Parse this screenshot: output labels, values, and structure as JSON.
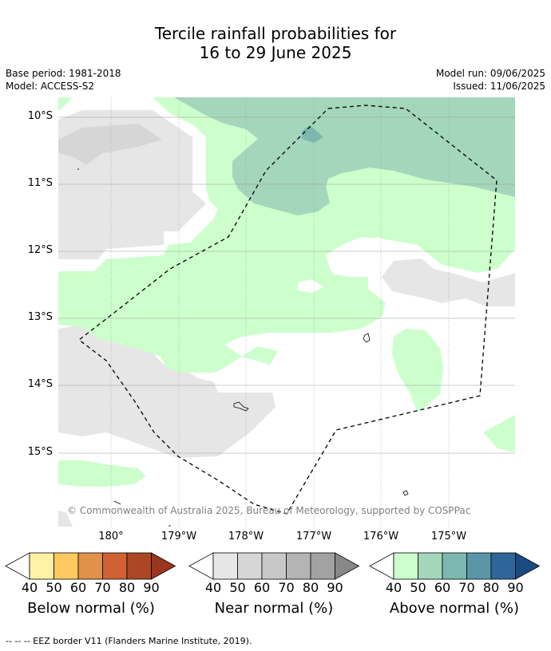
{
  "title_line1": "Tercile rainfall probabilities for",
  "title_line2": "16 to 29 June 2025",
  "base_period": "Base period: 1981-2018",
  "model": "Model: ACCESS-S2",
  "model_run": "Model run: 09/06/2025",
  "issued": "Issued: 11/06/2025",
  "lat_labels": [
    "10°S",
    "11°S",
    "12°S",
    "13°S",
    "14°S",
    "15°S"
  ],
  "lon_labels": [
    "180°",
    "179°W",
    "178°W",
    "177°W",
    "176°W",
    "175°W"
  ],
  "copyright": "© Commonwealth of Australia 2025, Bureau of Meteorology, supported by COSPPac",
  "legend_numbers": [
    "40",
    "50",
    "60",
    "70",
    "80",
    "90"
  ],
  "legends": [
    {
      "title": "Below normal (%)",
      "colors": [
        "#fff1a6",
        "#fec961",
        "#e0924a",
        "#cf6132",
        "#ad4624",
        "#9c3520"
      ]
    },
    {
      "title": "Near normal (%)",
      "colors": [
        "#e6e6e6",
        "#d6d6d6",
        "#c8c8c8",
        "#b4b4b4",
        "#a2a2a2",
        "#888888"
      ]
    },
    {
      "title": "Above normal (%)",
      "colors": [
        "#ccffcc",
        "#a4d6bb",
        "#7cb8b0",
        "#5a96a8",
        "#2f6699",
        "#1a4a80"
      ]
    }
  ],
  "footnote": "-- -- -- EEZ border V11 (Flanders Marine Institute, 2019)."
}
